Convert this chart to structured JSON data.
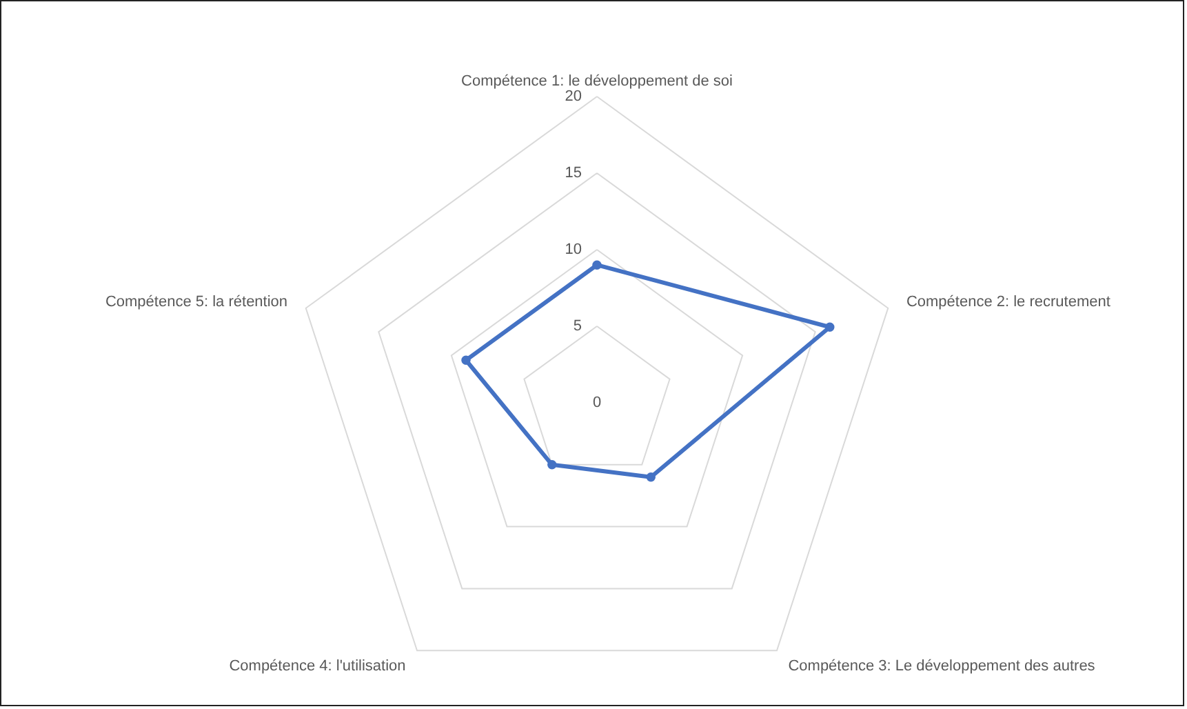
{
  "chart_data": {
    "type": "radar",
    "categories": [
      "Compétence 1: le développement de soi",
      "Compétence 2: le recrutement",
      "Compétence 3: Le développement des autres",
      "Compétence 4: l'utilisation",
      "Compétence 5: la rétention"
    ],
    "series": [
      {
        "color": "#4472c4",
        "values": [
          9,
          16,
          6,
          5,
          9
        ]
      }
    ],
    "ylim": [
      0,
      20
    ],
    "yticks": [
      0,
      5,
      10,
      15,
      20
    ],
    "grid": true,
    "marker": "circle",
    "line_style": "solid"
  }
}
